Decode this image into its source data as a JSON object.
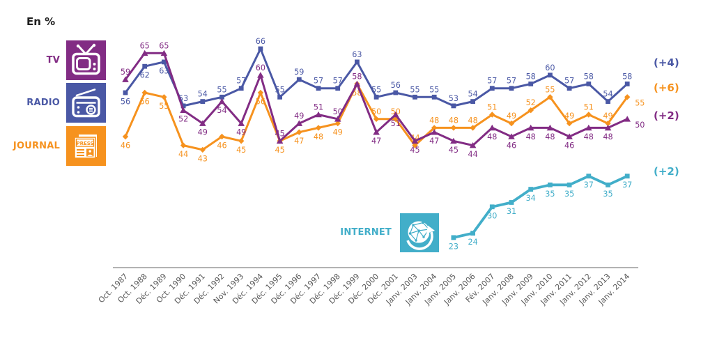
{
  "title": "En %",
  "legend": {
    "items": [
      {
        "id": "tv",
        "label": "TV",
        "color": "#822c84",
        "icon": "tv-icon"
      },
      {
        "id": "radio",
        "label": "RADIO",
        "color": "#4a58a5",
        "icon": "radio-icon"
      },
      {
        "id": "journal",
        "label": "JOURNAL",
        "color": "#f6921e",
        "icon": "journal-icon",
        "icon_text": "PRESS"
      },
      {
        "id": "internet",
        "label": "INTERNET",
        "color": "#42aec9",
        "icon": "internet-icon"
      }
    ]
  },
  "chart_data": {
    "type": "line",
    "title": "En %",
    "unit": "%",
    "grid": false,
    "legend_position": "left",
    "ylim": [
      20,
      70
    ],
    "x_tick_rotation": -45,
    "categories": [
      "Oct. 1987",
      "Oct. 1988",
      "Déc. 1989",
      "Oct. 1990",
      "Déc. 1991",
      "Déc. 1992",
      "Nov. 1993",
      "Déc. 1994",
      "Déc. 1995",
      "Déc. 1996",
      "Déc. 1997",
      "Déc. 1998",
      "Déc. 1999",
      "Déc. 2000",
      "Déc. 2001",
      "Janv. 2003",
      "Janv. 2004",
      "Janv. 2005",
      "Janv. 2006",
      "Fév. 2007",
      "Janv. 2008",
      "Janv. 2009",
      "Janv. 2010",
      "Janv. 2011",
      "Janv. 2012",
      "Janv. 2013",
      "Janv. 2014"
    ],
    "series": [
      {
        "name": "RADIO",
        "color": "#4a58a5",
        "marker": "square",
        "final_change": "(+4)",
        "values": [
          56,
          62,
          63,
          53,
          54,
          55,
          57,
          66,
          55,
          59,
          57,
          57,
          63,
          55,
          56,
          55,
          55,
          53,
          54,
          57,
          57,
          58,
          60,
          57,
          58,
          54,
          58
        ],
        "label_side": [
          "b",
          "b",
          "b",
          "a",
          "a",
          "a",
          "a",
          "a",
          "a",
          "a",
          "a",
          "a",
          "a",
          "a",
          "a",
          "a",
          "a",
          "a",
          "a",
          "a",
          "a",
          "a",
          "a",
          "a",
          "a",
          "a",
          "a"
        ]
      },
      {
        "name": "JOURNAL",
        "color": "#f6921e",
        "marker": "diamond",
        "final_change": "(+6)",
        "values": [
          46,
          56,
          55,
          44,
          43,
          46,
          45,
          56,
          45,
          47,
          48,
          49,
          58,
          50,
          50,
          44,
          48,
          48,
          48,
          51,
          49,
          52,
          55,
          49,
          51,
          49,
          55
        ],
        "label_side": [
          "b",
          "b",
          "b",
          "b",
          "b",
          "b",
          "b",
          "b",
          "b",
          "b",
          "b",
          "b",
          "b",
          "a",
          "a",
          "a",
          "a",
          "a",
          "a",
          "a",
          "a",
          "a",
          "a",
          "a",
          "a",
          "a",
          "r"
        ]
      },
      {
        "name": "TV",
        "color": "#822c84",
        "marker": "triangle",
        "final_change": "(+2)",
        "values": [
          59,
          65,
          65,
          52,
          49,
          54,
          49,
          60,
          45,
          49,
          51,
          50,
          58,
          47,
          51,
          45,
          47,
          45,
          44,
          48,
          46,
          48,
          48,
          46,
          48,
          48,
          50
        ],
        "label_side": [
          "a",
          "a",
          "a",
          "b",
          "b",
          "b",
          "b",
          "a",
          "a",
          "a",
          "a",
          "a",
          "a",
          "b",
          "b",
          "b",
          "b",
          "b",
          "b",
          "b",
          "b",
          "b",
          "b",
          "b",
          "b",
          "b",
          "r"
        ]
      },
      {
        "name": "INTERNET",
        "color": "#42aec9",
        "marker": "square",
        "final_change": "(+2)",
        "values": [
          null,
          null,
          null,
          null,
          null,
          null,
          null,
          null,
          null,
          null,
          null,
          null,
          null,
          null,
          null,
          null,
          null,
          23,
          24,
          30,
          31,
          34,
          35,
          35,
          37,
          35,
          37
        ],
        "label_side": [
          "b",
          "b",
          "b",
          "b",
          "b",
          "b",
          "b",
          "b",
          "b",
          "b",
          "b",
          "b",
          "b",
          "b",
          "b",
          "b",
          "b",
          "b",
          "b",
          "b",
          "b",
          "b",
          "b",
          "b",
          "b",
          "b",
          "b"
        ]
      }
    ]
  }
}
